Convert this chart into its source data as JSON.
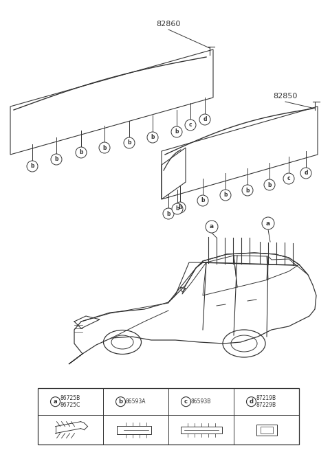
{
  "bg_color": "#ffffff",
  "line_color": "#333333",
  "title_82860": "82860",
  "title_82850": "82850",
  "fig_width": 4.8,
  "fig_height": 6.55,
  "dpi": 100,
  "legend": {
    "letters": [
      "a",
      "b",
      "c",
      "d"
    ],
    "codes": [
      [
        "86725B",
        "86725C"
      ],
      [
        "86593A"
      ],
      [
        "86593B"
      ],
      [
        "87219B",
        "87229B"
      ]
    ]
  }
}
